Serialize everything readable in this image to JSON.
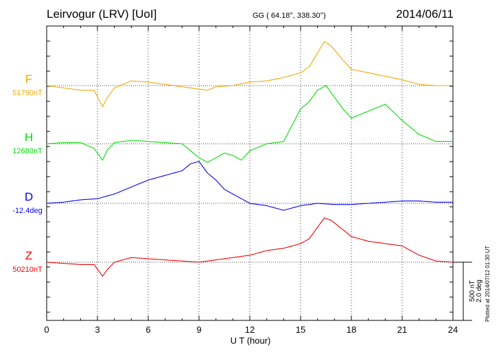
{
  "header": {
    "title": "Leirvogur (LRV)  [UoI]",
    "coords": "GG ( 64.18°, 338.30°)",
    "date": "2014/06/11"
  },
  "footer": {
    "plotted_at": "Plotted at 2014/07/12 01:30 UT"
  },
  "scale_bar": {
    "nt_label": "500 nT",
    "deg_label": "2.0 deg"
  },
  "chart_data": {
    "type": "line",
    "xlabel": "U T (hour)",
    "xlim": [
      0,
      24
    ],
    "xticks": [
      "0",
      "3",
      "6",
      "9",
      "12",
      "15",
      "18",
      "21",
      "24"
    ],
    "grid": true,
    "series": [
      {
        "name": "F",
        "baseline": "51790nT",
        "color": "#f0a800",
        "x": [
          0,
          1,
          2,
          2.8,
          3.3,
          3.6,
          4,
          5,
          6,
          7,
          8,
          9,
          9.5,
          10,
          11,
          12,
          13,
          14,
          15,
          15.5,
          16,
          16.4,
          16.8,
          17.5,
          18,
          19,
          20,
          21,
          22,
          23,
          24
        ],
        "y": [
          0,
          -10,
          -20,
          -20,
          -90,
          -50,
          -10,
          20,
          15,
          5,
          -5,
          -15,
          -20,
          -5,
          0,
          15,
          20,
          35,
          55,
          80,
          140,
          190,
          170,
          110,
          70,
          55,
          40,
          25,
          5,
          0,
          0
        ]
      },
      {
        "name": "H",
        "baseline": "12680nT",
        "color": "#00dd00",
        "x": [
          0,
          1,
          2,
          2.8,
          3.3,
          3.6,
          4,
          5,
          6,
          7,
          8,
          8.5,
          9,
          9.5,
          10,
          10.5,
          11,
          11.5,
          12,
          13,
          14,
          14.5,
          15,
          15.5,
          16,
          16.5,
          17,
          17.5,
          18,
          19,
          20,
          21,
          22,
          23,
          24
        ],
        "y": [
          0,
          5,
          5,
          -20,
          -70,
          -25,
          5,
          15,
          10,
          5,
          0,
          -30,
          -60,
          -80,
          -60,
          -40,
          -50,
          -70,
          -30,
          0,
          10,
          80,
          150,
          180,
          230,
          250,
          200,
          150,
          110,
          140,
          170,
          100,
          40,
          10,
          10
        ]
      },
      {
        "name": "D",
        "baseline": "-12.4deg",
        "color": "#0000ee",
        "x": [
          0,
          1,
          2,
          3,
          4,
          5,
          6,
          7,
          8,
          8.5,
          9,
          9.5,
          10,
          10.5,
          11,
          11.5,
          12,
          13,
          14,
          15,
          16,
          17,
          18,
          19,
          20,
          21,
          22,
          23,
          24
        ],
        "y": [
          0,
          5,
          15,
          20,
          40,
          70,
          100,
          120,
          140,
          170,
          180,
          130,
          100,
          60,
          40,
          20,
          0,
          -10,
          -30,
          -10,
          0,
          -5,
          -5,
          0,
          5,
          10,
          10,
          5,
          5
        ]
      },
      {
        "name": "Z",
        "baseline": "50210nT",
        "color": "#ee0000",
        "x": [
          0,
          1,
          2,
          2.8,
          3.3,
          3.6,
          4,
          5,
          6,
          7,
          8,
          9,
          10,
          11,
          12,
          13,
          14,
          15,
          15.5,
          16,
          16.4,
          16.8,
          17.5,
          18,
          19,
          20,
          21,
          22,
          23,
          24
        ],
        "y": [
          0,
          -5,
          -10,
          -10,
          -60,
          -30,
          0,
          20,
          15,
          10,
          5,
          0,
          10,
          20,
          30,
          50,
          60,
          80,
          100,
          150,
          190,
          180,
          140,
          110,
          90,
          80,
          70,
          30,
          5,
          0
        ]
      }
    ]
  }
}
